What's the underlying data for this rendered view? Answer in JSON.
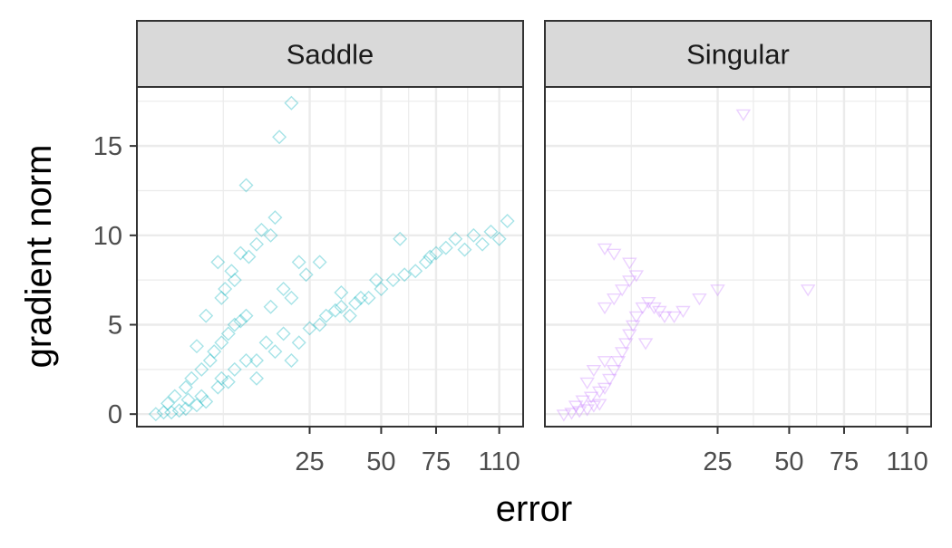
{
  "chart_data": {
    "type": "scatter",
    "xlabel": "error",
    "ylabel": "gradient norm",
    "x_scale": "sqrt",
    "xlim": [
      0,
      125
    ],
    "ylim": [
      -0.7,
      18.3
    ],
    "x_ticks": [
      25,
      50,
      75,
      110
    ],
    "x_tick_labels": [
      "25",
      "50",
      "75",
      "110"
    ],
    "y_ticks": [
      0,
      5,
      10,
      15
    ],
    "y_tick_labels": [
      "0",
      "5",
      "10",
      "15"
    ],
    "grid": true,
    "legend": "none",
    "panels": [
      {
        "label": "Saddle",
        "color": "#00AFBB",
        "marker": "diamond-open",
        "points": [
          [
            0.3,
            0.0
          ],
          [
            0.6,
            0.1
          ],
          [
            1.0,
            0.1
          ],
          [
            1.5,
            0.2
          ],
          [
            2.0,
            0.3
          ],
          [
            3.0,
            0.5
          ],
          [
            4.0,
            0.7
          ],
          [
            0.8,
            0.6
          ],
          [
            1.2,
            1.0
          ],
          [
            2.0,
            1.5
          ],
          [
            2.5,
            2.0
          ],
          [
            3.5,
            2.5
          ],
          [
            4.5,
            3.0
          ],
          [
            5.0,
            3.5
          ],
          [
            6.0,
            4.0
          ],
          [
            7.0,
            4.5
          ],
          [
            8.0,
            5.0
          ],
          [
            9.0,
            5.2
          ],
          [
            10.0,
            5.5
          ],
          [
            3.0,
            3.8
          ],
          [
            4.0,
            5.5
          ],
          [
            6.0,
            6.5
          ],
          [
            7.5,
            8.0
          ],
          [
            9.0,
            9.0
          ],
          [
            5.5,
            8.5
          ],
          [
            6.5,
            7.0
          ],
          [
            8.0,
            7.5
          ],
          [
            10.5,
            8.8
          ],
          [
            12.0,
            9.5
          ],
          [
            13.0,
            10.3
          ],
          [
            15.0,
            10.0
          ],
          [
            12.0,
            3.0
          ],
          [
            14.0,
            4.0
          ],
          [
            16.0,
            3.5
          ],
          [
            18.0,
            4.5
          ],
          [
            20.0,
            3.0
          ],
          [
            22.0,
            4.0
          ],
          [
            25.0,
            4.8
          ],
          [
            28.0,
            5.0
          ],
          [
            30.0,
            5.5
          ],
          [
            33.0,
            5.8
          ],
          [
            35.0,
            6.0
          ],
          [
            38.0,
            5.5
          ],
          [
            40.0,
            6.2
          ],
          [
            42.0,
            6.5
          ],
          [
            45.0,
            6.5
          ],
          [
            50.0,
            7.0
          ],
          [
            55.0,
            7.5
          ],
          [
            60.0,
            7.8
          ],
          [
            65.0,
            8.0
          ],
          [
            70.0,
            8.5
          ],
          [
            75.0,
            9.0
          ],
          [
            80.0,
            9.3
          ],
          [
            85.0,
            9.8
          ],
          [
            95.0,
            10.0
          ],
          [
            105.0,
            10.2
          ],
          [
            115.0,
            10.8
          ],
          [
            58.0,
            9.8
          ],
          [
            72.0,
            8.8
          ],
          [
            90.0,
            9.2
          ],
          [
            15.0,
            6.0
          ],
          [
            18.0,
            7.0
          ],
          [
            20.0,
            6.5
          ],
          [
            24.0,
            7.8
          ],
          [
            28.0,
            8.5
          ],
          [
            10.0,
            12.8
          ],
          [
            17.0,
            15.5
          ],
          [
            20.0,
            17.4
          ],
          [
            16.0,
            11.0
          ],
          [
            22.0,
            8.5
          ],
          [
            35.0,
            6.8
          ],
          [
            48.0,
            7.5
          ],
          [
            100.0,
            9.5
          ],
          [
            110.0,
            9.8
          ],
          [
            6.0,
            2.0
          ],
          [
            8.0,
            2.5
          ],
          [
            10.0,
            3.0
          ],
          [
            12.0,
            2.0
          ],
          [
            7.0,
            1.8
          ],
          [
            3.5,
            1.0
          ],
          [
            5.5,
            1.5
          ],
          [
            2.2,
            0.8
          ]
        ]
      },
      {
        "label": "Singular",
        "color": "#C77CFF",
        "marker": "triangle-down-open",
        "points": [
          [
            0.3,
            0.0
          ],
          [
            0.6,
            0.1
          ],
          [
            1.0,
            0.2
          ],
          [
            1.5,
            0.3
          ],
          [
            2.0,
            0.5
          ],
          [
            2.5,
            0.6
          ],
          [
            0.8,
            0.5
          ],
          [
            1.2,
            0.8
          ],
          [
            1.8,
            1.0
          ],
          [
            2.5,
            1.3
          ],
          [
            3.0,
            1.5
          ],
          [
            3.5,
            2.0
          ],
          [
            4.0,
            2.5
          ],
          [
            4.5,
            3.0
          ],
          [
            5.0,
            3.5
          ],
          [
            5.5,
            4.0
          ],
          [
            6.0,
            4.5
          ],
          [
            6.5,
            5.0
          ],
          [
            7.0,
            5.5
          ],
          [
            8.0,
            6.0
          ],
          [
            9.0,
            6.3
          ],
          [
            10.0,
            6.0
          ],
          [
            11.0,
            5.8
          ],
          [
            12.0,
            5.5
          ],
          [
            3.0,
            6.0
          ],
          [
            4.0,
            6.5
          ],
          [
            5.0,
            7.0
          ],
          [
            6.0,
            7.5
          ],
          [
            7.0,
            7.8
          ],
          [
            6.0,
            8.5
          ],
          [
            4.0,
            9.0
          ],
          [
            3.0,
            9.3
          ],
          [
            14.0,
            5.5
          ],
          [
            16.0,
            5.8
          ],
          [
            20.0,
            6.5
          ],
          [
            25.0,
            7.0
          ],
          [
            33.0,
            16.8
          ],
          [
            58.0,
            7.0
          ],
          [
            2.0,
            2.5
          ],
          [
            3.0,
            3.0
          ],
          [
            1.5,
            1.8
          ],
          [
            8.5,
            4.0
          ]
        ]
      }
    ]
  }
}
